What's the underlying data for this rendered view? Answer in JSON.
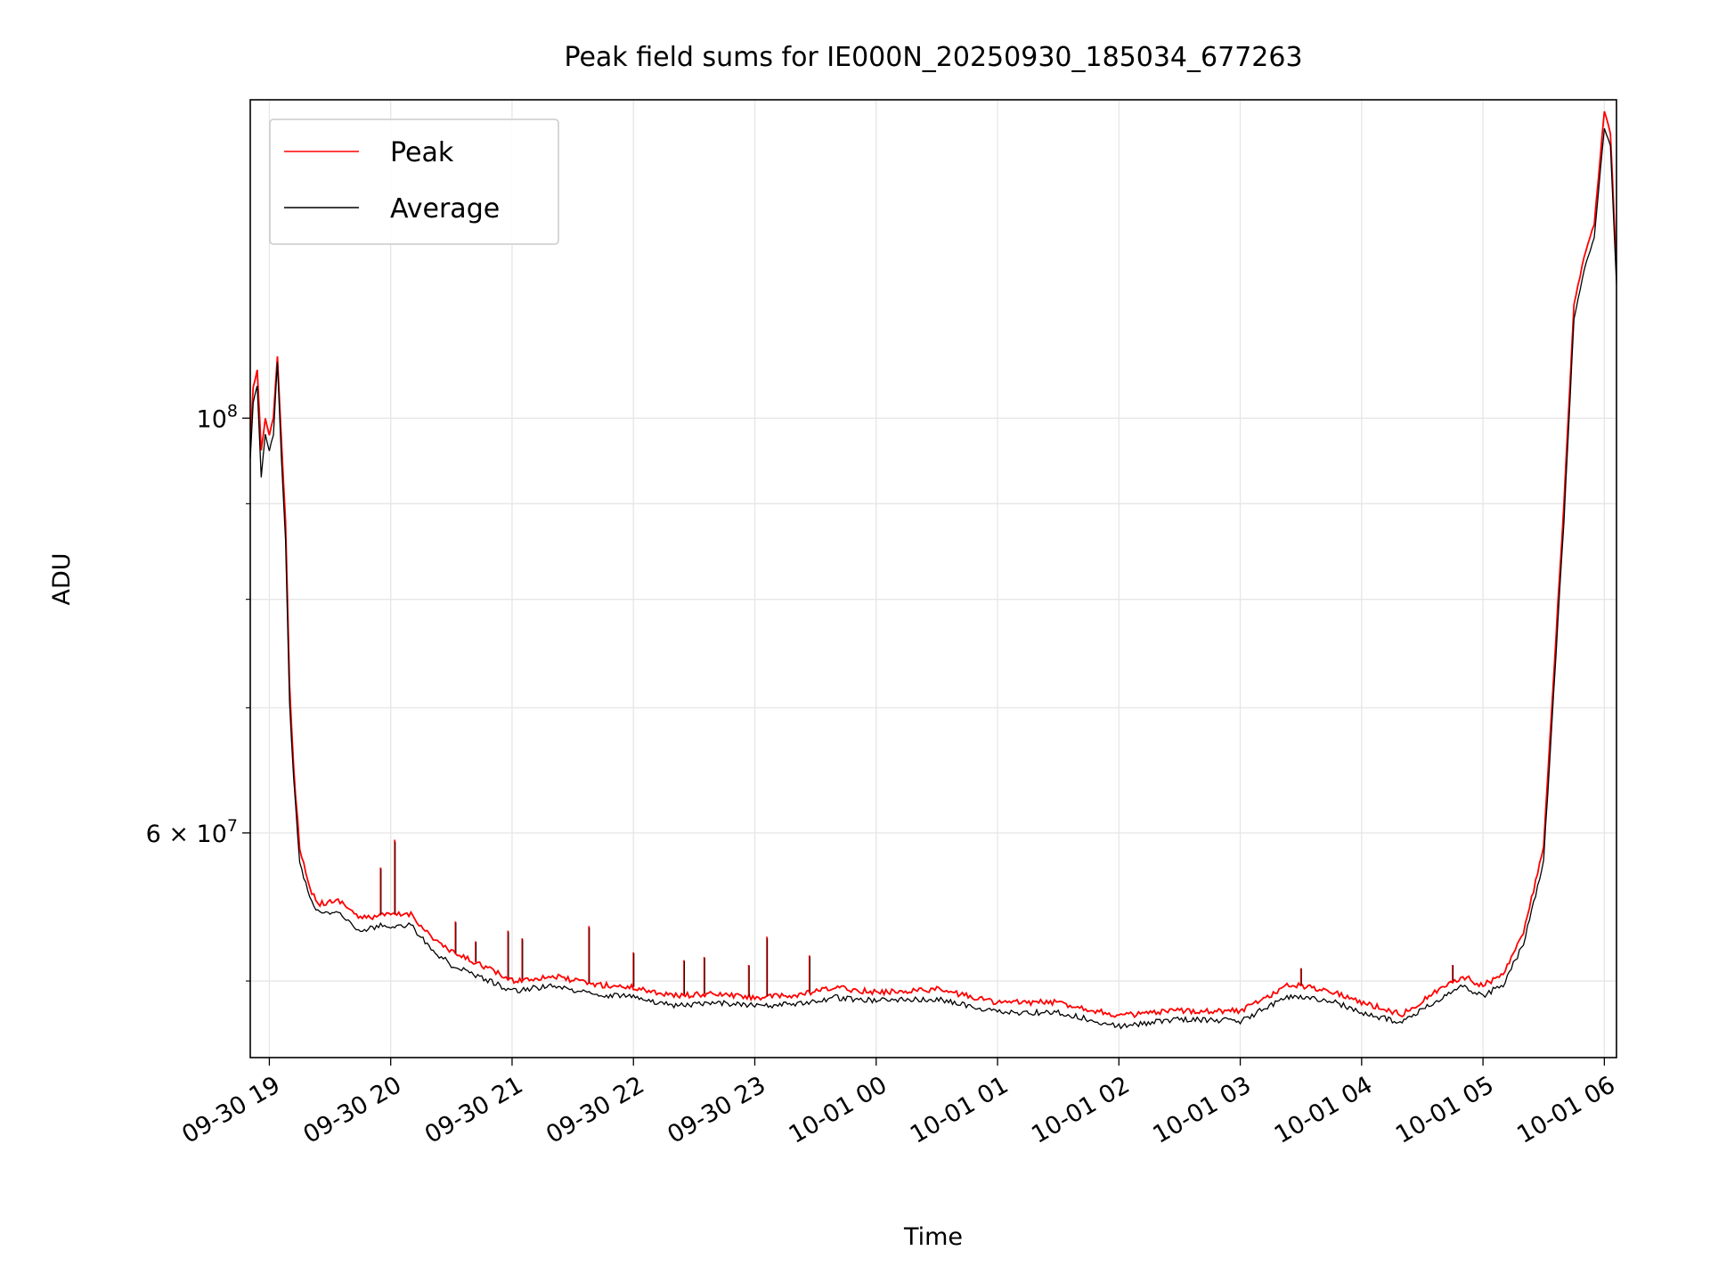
{
  "chart_data": {
    "type": "line",
    "title": "Peak field sums for IE000N_20250930_185034_677263",
    "xlabel": "Time",
    "ylabel": "ADU",
    "x_axis": "datetime",
    "y_scale": "log",
    "xlim": [
      "2025-09-30T18:50:34",
      "2025-10-01T06:06:00"
    ],
    "ylim": [
      45500000,
      148000000
    ],
    "x_ticks": [
      {
        "t": "2025-09-30T19:00",
        "label": "09-30 19"
      },
      {
        "t": "2025-09-30T20:00",
        "label": "09-30 20"
      },
      {
        "t": "2025-09-30T21:00",
        "label": "09-30 21"
      },
      {
        "t": "2025-09-30T22:00",
        "label": "09-30 22"
      },
      {
        "t": "2025-09-30T23:00",
        "label": "09-30 23"
      },
      {
        "t": "2025-10-01T00:00",
        "label": "10-01 00"
      },
      {
        "t": "2025-10-01T01:00",
        "label": "10-01 01"
      },
      {
        "t": "2025-10-01T02:00",
        "label": "10-01 02"
      },
      {
        "t": "2025-10-01T03:00",
        "label": "10-01 03"
      },
      {
        "t": "2025-10-01T04:00",
        "label": "10-01 04"
      },
      {
        "t": "2025-10-01T05:00",
        "label": "10-01 05"
      },
      {
        "t": "2025-10-01T06:00",
        "label": "10-01 06"
      }
    ],
    "y_major_ticks": [
      {
        "v": 60000000,
        "mant": "6 × 10",
        "exp": "7"
      },
      {
        "v": 100000000,
        "mant": "10",
        "exp": "8"
      }
    ],
    "y_minor_ticks": [
      50000000,
      70000000,
      80000000,
      90000000
    ],
    "grid": true,
    "legend": {
      "placement": "upper-left",
      "entries": [
        "Peak",
        "Average"
      ]
    },
    "series": [
      {
        "name": "Peak",
        "color": "#ff0000",
        "points": [
          [
            "2025-09-30T18:50:34",
            97000000
          ],
          [
            "2025-09-30T18:52:00",
            104000000
          ],
          [
            "2025-09-30T18:54:00",
            106000000
          ],
          [
            "2025-09-30T18:56:00",
            96000000
          ],
          [
            "2025-09-30T18:58:00",
            100000000
          ],
          [
            "2025-09-30T19:00:00",
            98000000
          ],
          [
            "2025-09-30T19:02:00",
            100000000
          ],
          [
            "2025-09-30T19:04:00",
            108000000
          ],
          [
            "2025-09-30T19:06:00",
            97000000
          ],
          [
            "2025-09-30T19:08:00",
            88000000
          ],
          [
            "2025-09-30T19:10:00",
            72000000
          ],
          [
            "2025-09-30T19:12:00",
            65000000
          ],
          [
            "2025-09-30T19:15:00",
            59000000
          ],
          [
            "2025-09-30T19:20:00",
            56000000
          ],
          [
            "2025-09-30T19:25:00",
            55000000
          ],
          [
            "2025-09-30T19:35:00",
            55200000
          ],
          [
            "2025-09-30T19:45:00",
            54000000
          ],
          [
            "2025-09-30T19:55:00",
            54200000
          ],
          [
            "2025-09-30T20:10:00",
            54300000
          ],
          [
            "2025-09-30T20:20:00",
            52800000
          ],
          [
            "2025-09-30T20:30:00",
            51800000
          ],
          [
            "2025-09-30T20:45:00",
            51000000
          ],
          [
            "2025-09-30T21:00:00",
            50000000
          ],
          [
            "2025-09-30T21:20:00",
            50300000
          ],
          [
            "2025-09-30T21:40:00",
            49800000
          ],
          [
            "2025-09-30T22:00:00",
            49600000
          ],
          [
            "2025-09-30T22:20:00",
            49100000
          ],
          [
            "2025-09-30T22:40:00",
            49200000
          ],
          [
            "2025-09-30T23:00:00",
            49000000
          ],
          [
            "2025-09-30T23:20:00",
            49100000
          ],
          [
            "2025-09-30T23:40:00",
            49600000
          ],
          [
            "2025-10-01T00:00:00",
            49300000
          ],
          [
            "2025-10-01T00:30:00",
            49500000
          ],
          [
            "2025-10-01T01:00:00",
            48700000
          ],
          [
            "2025-10-01T01:30:00",
            48700000
          ],
          [
            "2025-10-01T02:00:00",
            47900000
          ],
          [
            "2025-10-01T02:30:00",
            48200000
          ],
          [
            "2025-10-01T03:00:00",
            48200000
          ],
          [
            "2025-10-01T03:25:00",
            49800000
          ],
          [
            "2025-10-01T03:45:00",
            49400000
          ],
          [
            "2025-10-01T04:00:00",
            48700000
          ],
          [
            "2025-10-01T04:20:00",
            48000000
          ],
          [
            "2025-10-01T04:40:00",
            49600000
          ],
          [
            "2025-10-01T04:50:00",
            50300000
          ],
          [
            "2025-10-01T05:00:00",
            49700000
          ],
          [
            "2025-10-01T05:10:00",
            50500000
          ],
          [
            "2025-10-01T05:20:00",
            53000000
          ],
          [
            "2025-10-01T05:30:00",
            59000000
          ],
          [
            "2025-10-01T05:40:00",
            90000000
          ],
          [
            "2025-10-01T05:45:00",
            115000000
          ],
          [
            "2025-10-01T05:50:00",
            122000000
          ],
          [
            "2025-10-01T05:55:00",
            127000000
          ],
          [
            "2025-10-01T06:00:00",
            146000000
          ],
          [
            "2025-10-01T06:03:00",
            142000000
          ],
          [
            "2025-10-01T06:06:00",
            120000000
          ]
        ]
      },
      {
        "name": "Average",
        "color": "#000000",
        "points": [
          [
            "2025-09-30T18:50:34",
            95000000
          ],
          [
            "2025-09-30T18:52:00",
            102000000
          ],
          [
            "2025-09-30T18:54:00",
            104000000
          ],
          [
            "2025-09-30T18:56:00",
            93000000
          ],
          [
            "2025-09-30T18:58:00",
            98000000
          ],
          [
            "2025-09-30T19:00:00",
            96000000
          ],
          [
            "2025-09-30T19:02:00",
            98000000
          ],
          [
            "2025-09-30T19:04:00",
            107000000
          ],
          [
            "2025-09-30T19:06:00",
            95000000
          ],
          [
            "2025-09-30T19:08:00",
            86000000
          ],
          [
            "2025-09-30T19:10:00",
            70500000
          ],
          [
            "2025-09-30T19:12:00",
            64000000
          ],
          [
            "2025-09-30T19:15:00",
            58000000
          ],
          [
            "2025-09-30T19:20:00",
            55300000
          ],
          [
            "2025-09-30T19:25:00",
            54300000
          ],
          [
            "2025-09-30T19:35:00",
            54400000
          ],
          [
            "2025-09-30T19:45:00",
            53200000
          ],
          [
            "2025-09-30T19:55:00",
            53500000
          ],
          [
            "2025-09-30T20:10:00",
            53600000
          ],
          [
            "2025-09-30T20:20:00",
            52000000
          ],
          [
            "2025-09-30T20:30:00",
            51000000
          ],
          [
            "2025-09-30T20:45:00",
            50200000
          ],
          [
            "2025-09-30T21:00:00",
            49400000
          ],
          [
            "2025-09-30T21:20:00",
            49700000
          ],
          [
            "2025-09-30T21:40:00",
            49200000
          ],
          [
            "2025-09-30T22:00:00",
            49000000
          ],
          [
            "2025-09-30T22:20:00",
            48500000
          ],
          [
            "2025-09-30T22:40:00",
            48700000
          ],
          [
            "2025-09-30T23:00:00",
            48500000
          ],
          [
            "2025-09-30T23:20:00",
            48600000
          ],
          [
            "2025-09-30T23:40:00",
            49000000
          ],
          [
            "2025-10-01T00:00:00",
            48800000
          ],
          [
            "2025-10-01T00:30:00",
            48900000
          ],
          [
            "2025-10-01T01:00:00",
            48100000
          ],
          [
            "2025-10-01T01:30:00",
            48100000
          ],
          [
            "2025-10-01T02:00:00",
            47300000
          ],
          [
            "2025-10-01T02:30:00",
            47700000
          ],
          [
            "2025-10-01T03:00:00",
            47600000
          ],
          [
            "2025-10-01T03:25:00",
            49100000
          ],
          [
            "2025-10-01T03:45:00",
            48800000
          ],
          [
            "2025-10-01T04:00:00",
            48100000
          ],
          [
            "2025-10-01T04:20:00",
            47500000
          ],
          [
            "2025-10-01T04:40:00",
            49000000
          ],
          [
            "2025-10-01T04:50:00",
            49700000
          ],
          [
            "2025-10-01T05:00:00",
            49100000
          ],
          [
            "2025-10-01T05:10:00",
            49800000
          ],
          [
            "2025-10-01T05:20:00",
            52300000
          ],
          [
            "2025-10-01T05:30:00",
            58000000
          ],
          [
            "2025-10-01T05:40:00",
            88000000
          ],
          [
            "2025-10-01T05:45:00",
            113000000
          ],
          [
            "2025-10-01T05:50:00",
            120000000
          ],
          [
            "2025-10-01T05:55:00",
            125000000
          ],
          [
            "2025-10-01T06:00:00",
            143000000
          ],
          [
            "2025-10-01T06:03:00",
            140000000
          ],
          [
            "2025-10-01T06:06:00",
            118000000
          ]
        ]
      }
    ],
    "spikes": [
      [
        "2025-09-30T19:55:00",
        57500000
      ],
      [
        "2025-09-30T20:02:00",
        59500000
      ],
      [
        "2025-09-30T20:32:00",
        53800000
      ],
      [
        "2025-09-30T20:42:00",
        52500000
      ],
      [
        "2025-09-30T20:58:00",
        53200000
      ],
      [
        "2025-09-30T21:05:00",
        52700000
      ],
      [
        "2025-09-30T21:38:00",
        53500000
      ],
      [
        "2025-09-30T22:00:00",
        51800000
      ],
      [
        "2025-09-30T22:25:00",
        51300000
      ],
      [
        "2025-09-30T22:35:00",
        51500000
      ],
      [
        "2025-09-30T22:57:00",
        51000000
      ],
      [
        "2025-09-30T23:06:00",
        52800000
      ],
      [
        "2025-09-30T23:27:00",
        51600000
      ],
      [
        "2025-10-01T03:30:00",
        50800000
      ],
      [
        "2025-10-01T04:45:00",
        51000000
      ]
    ]
  }
}
